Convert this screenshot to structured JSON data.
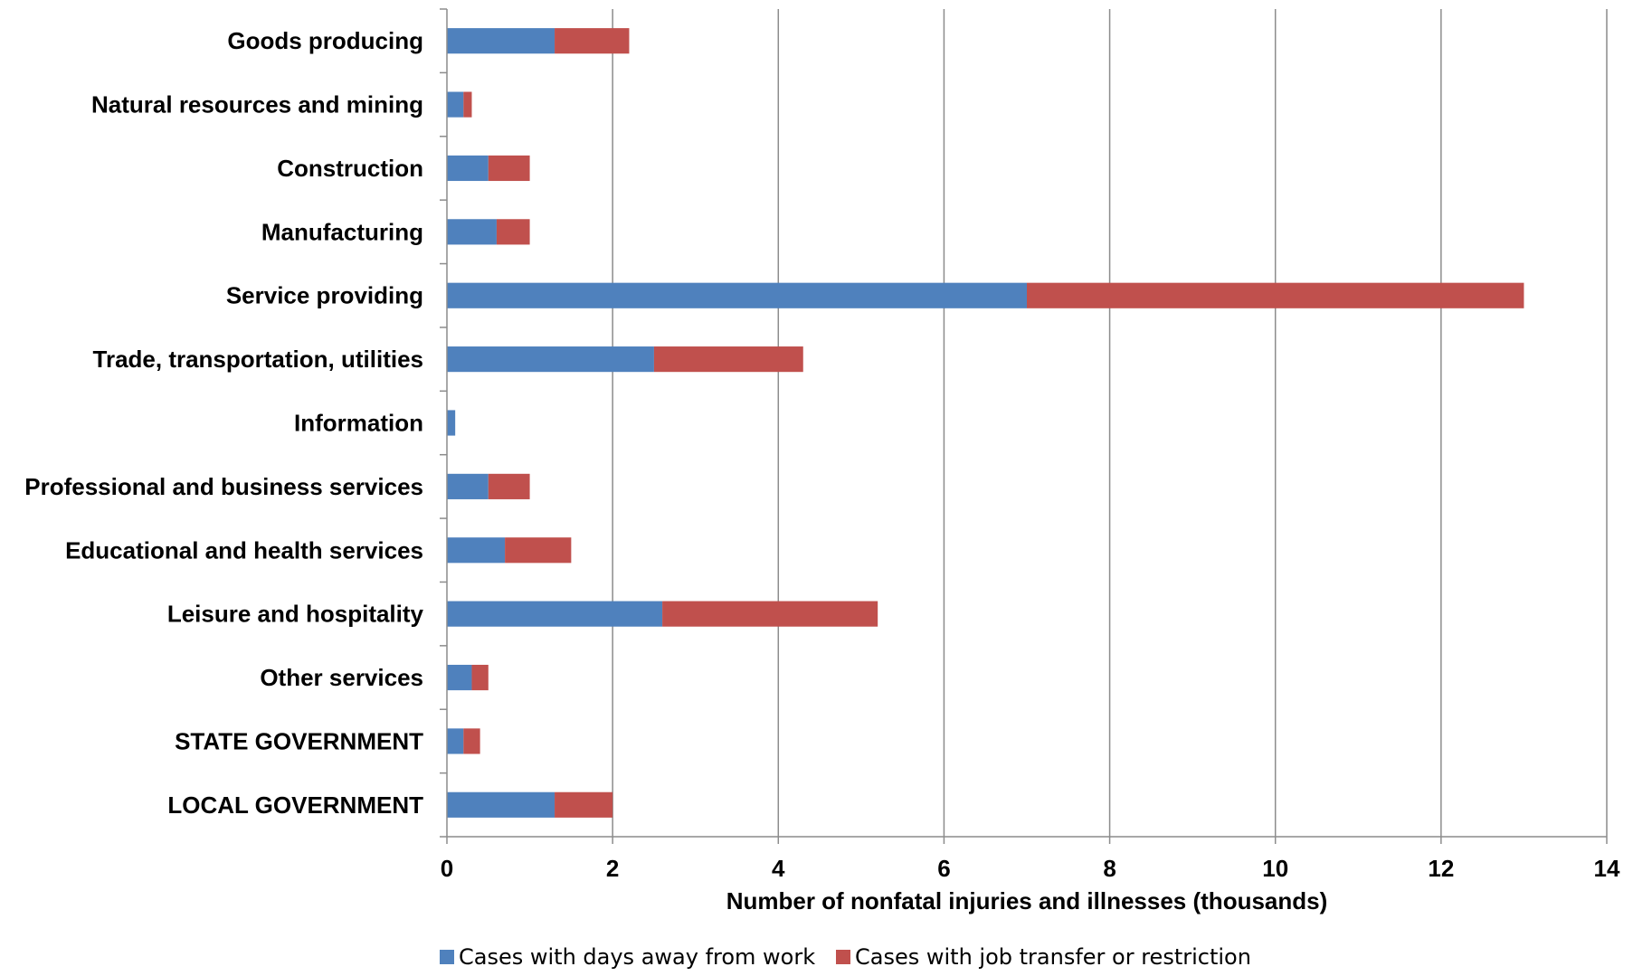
{
  "chart_data": {
    "type": "bar",
    "orientation": "horizontal",
    "stacked": true,
    "categories": [
      "Goods producing",
      "Natural resources and mining",
      "Construction",
      "Manufacturing",
      "Service providing",
      "Trade, transportation, utilities",
      "Information",
      "Professional and business services",
      "Educational and health services",
      "Leisure and hospitality",
      "Other services",
      "STATE GOVERNMENT",
      "LOCAL GOVERNMENT"
    ],
    "series": [
      {
        "name": "Cases with days away from work",
        "color": "#4F81BD",
        "values": [
          1.3,
          0.2,
          0.5,
          0.6,
          7.0,
          2.5,
          0.1,
          0.5,
          0.7,
          2.6,
          0.3,
          0.2,
          1.3
        ]
      },
      {
        "name": "Cases with job transfer or restriction",
        "color": "#C0504D",
        "values": [
          0.9,
          0.1,
          0.5,
          0.4,
          6.0,
          1.8,
          0.0,
          0.5,
          0.8,
          2.6,
          0.2,
          0.2,
          0.7
        ]
      }
    ],
    "xlabel": "Number of nonfatal injuries and illnesses (thousands)",
    "xlim": [
      0,
      14
    ],
    "xticks": [
      "0",
      "2",
      "4",
      "6",
      "8",
      "10",
      "12",
      "14"
    ],
    "grid": "vertical",
    "legend": "bottom"
  }
}
